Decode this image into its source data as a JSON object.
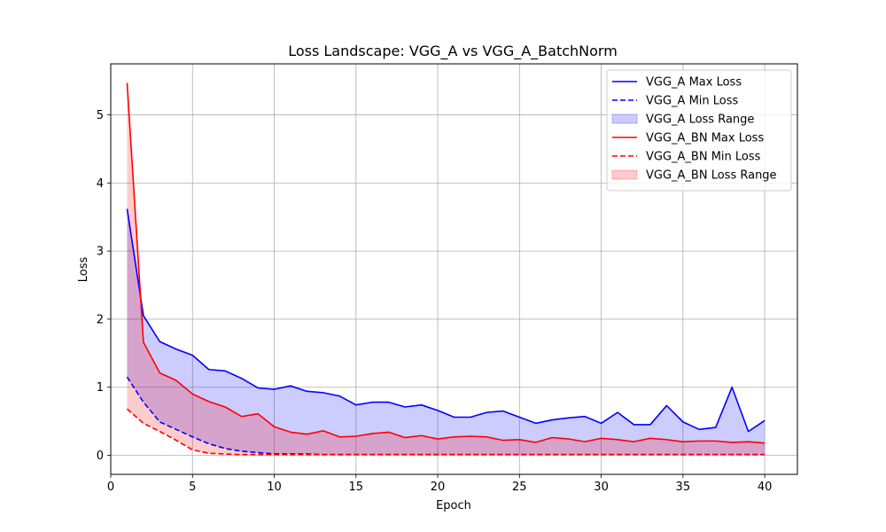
{
  "chart_data": {
    "type": "line",
    "title": "Loss Landscape: VGG_A vs VGG_A_BatchNorm",
    "xlabel": "Epoch",
    "ylabel": "Loss",
    "xlim": [
      0,
      42
    ],
    "ylim": [
      -0.28,
      5.75
    ],
    "xticks": [
      0,
      5,
      10,
      15,
      20,
      25,
      30,
      35,
      40
    ],
    "yticks": [
      0,
      1,
      2,
      3,
      4,
      5
    ],
    "grid": true,
    "legend_position": "top-right",
    "x": [
      1,
      2,
      3,
      4,
      5,
      6,
      7,
      8,
      9,
      10,
      11,
      12,
      13,
      14,
      15,
      16,
      17,
      18,
      19,
      20,
      21,
      22,
      23,
      24,
      25,
      26,
      27,
      28,
      29,
      30,
      31,
      32,
      33,
      34,
      35,
      36,
      37,
      38,
      39,
      40
    ],
    "series": [
      {
        "name": "VGG_A Max Loss",
        "color": "#0000ff",
        "style": "solid",
        "values": [
          3.62,
          2.05,
          1.67,
          1.56,
          1.47,
          1.26,
          1.24,
          1.13,
          0.99,
          0.97,
          1.02,
          0.94,
          0.92,
          0.87,
          0.74,
          0.78,
          0.78,
          0.71,
          0.74,
          0.66,
          0.56,
          0.56,
          0.63,
          0.65,
          0.56,
          0.47,
          0.52,
          0.55,
          0.57,
          0.47,
          0.63,
          0.45,
          0.45,
          0.73,
          0.49,
          0.38,
          0.41,
          1.0,
          0.35,
          0.51
        ]
      },
      {
        "name": "VGG_A Min Loss",
        "color": "#0000ff",
        "style": "dashed",
        "values": [
          1.15,
          0.78,
          0.49,
          0.38,
          0.27,
          0.17,
          0.1,
          0.06,
          0.04,
          0.02,
          0.02,
          0.02,
          0.01,
          0.01,
          0.01,
          0.01,
          0.01,
          0.01,
          0.01,
          0.01,
          0.01,
          0.01,
          0.01,
          0.01,
          0.01,
          0.01,
          0.01,
          0.01,
          0.01,
          0.01,
          0.01,
          0.01,
          0.01,
          0.01,
          0.01,
          0.01,
          0.01,
          0.01,
          0.01,
          0.01
        ]
      },
      {
        "name": "VGG_A_BN Max Loss",
        "color": "#ff0000",
        "style": "solid",
        "values": [
          5.47,
          1.66,
          1.21,
          1.1,
          0.9,
          0.79,
          0.71,
          0.57,
          0.61,
          0.42,
          0.34,
          0.31,
          0.36,
          0.27,
          0.28,
          0.32,
          0.34,
          0.26,
          0.29,
          0.24,
          0.27,
          0.28,
          0.27,
          0.22,
          0.23,
          0.19,
          0.26,
          0.24,
          0.2,
          0.25,
          0.23,
          0.2,
          0.25,
          0.23,
          0.2,
          0.21,
          0.21,
          0.19,
          0.2,
          0.18
        ]
      },
      {
        "name": "VGG_A_BN Min Loss",
        "color": "#ff0000",
        "style": "dashed",
        "values": [
          0.68,
          0.47,
          0.35,
          0.22,
          0.08,
          0.03,
          0.02,
          0.01,
          0.01,
          0.01,
          0.01,
          0.01,
          0.01,
          0.01,
          0.01,
          0.01,
          0.01,
          0.01,
          0.01,
          0.01,
          0.01,
          0.01,
          0.01,
          0.01,
          0.01,
          0.01,
          0.01,
          0.01,
          0.01,
          0.01,
          0.01,
          0.01,
          0.01,
          0.01,
          0.01,
          0.01,
          0.01,
          0.01,
          0.01,
          0.01
        ]
      }
    ],
    "ranges": [
      {
        "name": "VGG_A Loss Range",
        "color": "#0000ff",
        "opacity": 0.2,
        "upper": "VGG_A Max Loss",
        "lower": "VGG_A Min Loss"
      },
      {
        "name": "VGG_A_BN Loss Range",
        "color": "#ff0000",
        "opacity": 0.2,
        "upper": "VGG_A_BN Max Loss",
        "lower": "VGG_A_BN Min Loss"
      }
    ],
    "legend": [
      {
        "label": "VGG_A Max Loss",
        "kind": "line",
        "color": "#0000ff",
        "style": "solid"
      },
      {
        "label": "VGG_A Min Loss",
        "kind": "line",
        "color": "#0000ff",
        "style": "dashed"
      },
      {
        "label": "VGG_A Loss Range",
        "kind": "patch",
        "color": "#0000ff"
      },
      {
        "label": "VGG_A_BN Max Loss",
        "kind": "line",
        "color": "#ff0000",
        "style": "solid"
      },
      {
        "label": "VGG_A_BN Min Loss",
        "kind": "line",
        "color": "#ff0000",
        "style": "dashed"
      },
      {
        "label": "VGG_A_BN Loss Range",
        "kind": "patch",
        "color": "#ff0000"
      }
    ]
  }
}
